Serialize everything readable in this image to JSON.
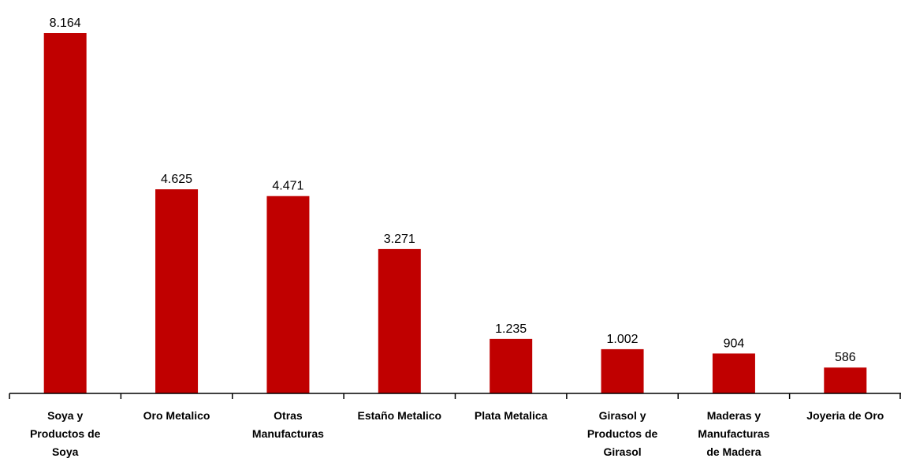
{
  "chart_data": {
    "type": "bar",
    "categories": [
      "Soya y Productos de Soya",
      "Oro Metalico",
      "Otras Manufacturas",
      "Estaño Metalico",
      "Plata Metalica",
      "Girasol y Productos de Girasol",
      "Maderas y Manufacturas de Madera",
      "Joyeria de Oro"
    ],
    "category_lines": [
      [
        "Soya y",
        "Productos de",
        "Soya"
      ],
      [
        "Oro Metalico"
      ],
      [
        "Otras",
        "Manufacturas"
      ],
      [
        "Estaño Metalico"
      ],
      [
        "Plata Metalica"
      ],
      [
        "Girasol y",
        "Productos de",
        "Girasol"
      ],
      [
        "Maderas y",
        "Manufacturas",
        "de Madera"
      ],
      [
        "Joyeria de Oro"
      ]
    ],
    "values": [
      8164,
      4625,
      4471,
      3271,
      1235,
      1002,
      904,
      586
    ],
    "data_labels": [
      "8.164",
      "4.625",
      "4.471",
      "3.271",
      "1.235",
      "1.002",
      "904",
      "586"
    ],
    "title": "",
    "xlabel": "",
    "ylabel": "",
    "ylim": [
      0,
      8164
    ],
    "grid": false,
    "legend": "none",
    "bar_color": "#C00000"
  }
}
